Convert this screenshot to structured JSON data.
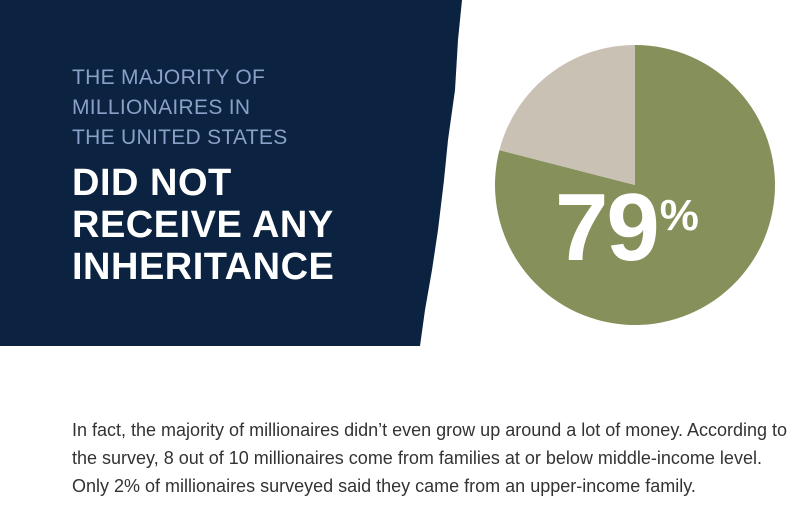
{
  "banner": {
    "background_color": "#0b2340",
    "subhead_lines": [
      "THE MAJORITY OF",
      "MILLIONAIRES IN",
      "THE UNITED STATES"
    ],
    "headline_lines": [
      "DID NOT",
      "RECEIVE ANY",
      "INHERITANCE"
    ]
  },
  "chart_data": {
    "type": "pie",
    "slices": [
      {
        "value": 79,
        "color": "#86905a"
      },
      {
        "value": 21,
        "color": "#c9c1b4"
      }
    ],
    "label": "79",
    "label_unit": "%"
  },
  "body": {
    "paragraph": "In fact, the majority of millionaires didn’t even grow up around a lot of money. According to the survey, 8 out of 10 millionaires come from families at or below middle-income level. Only 2% of millionaires surveyed said they came from an upper-income family."
  }
}
